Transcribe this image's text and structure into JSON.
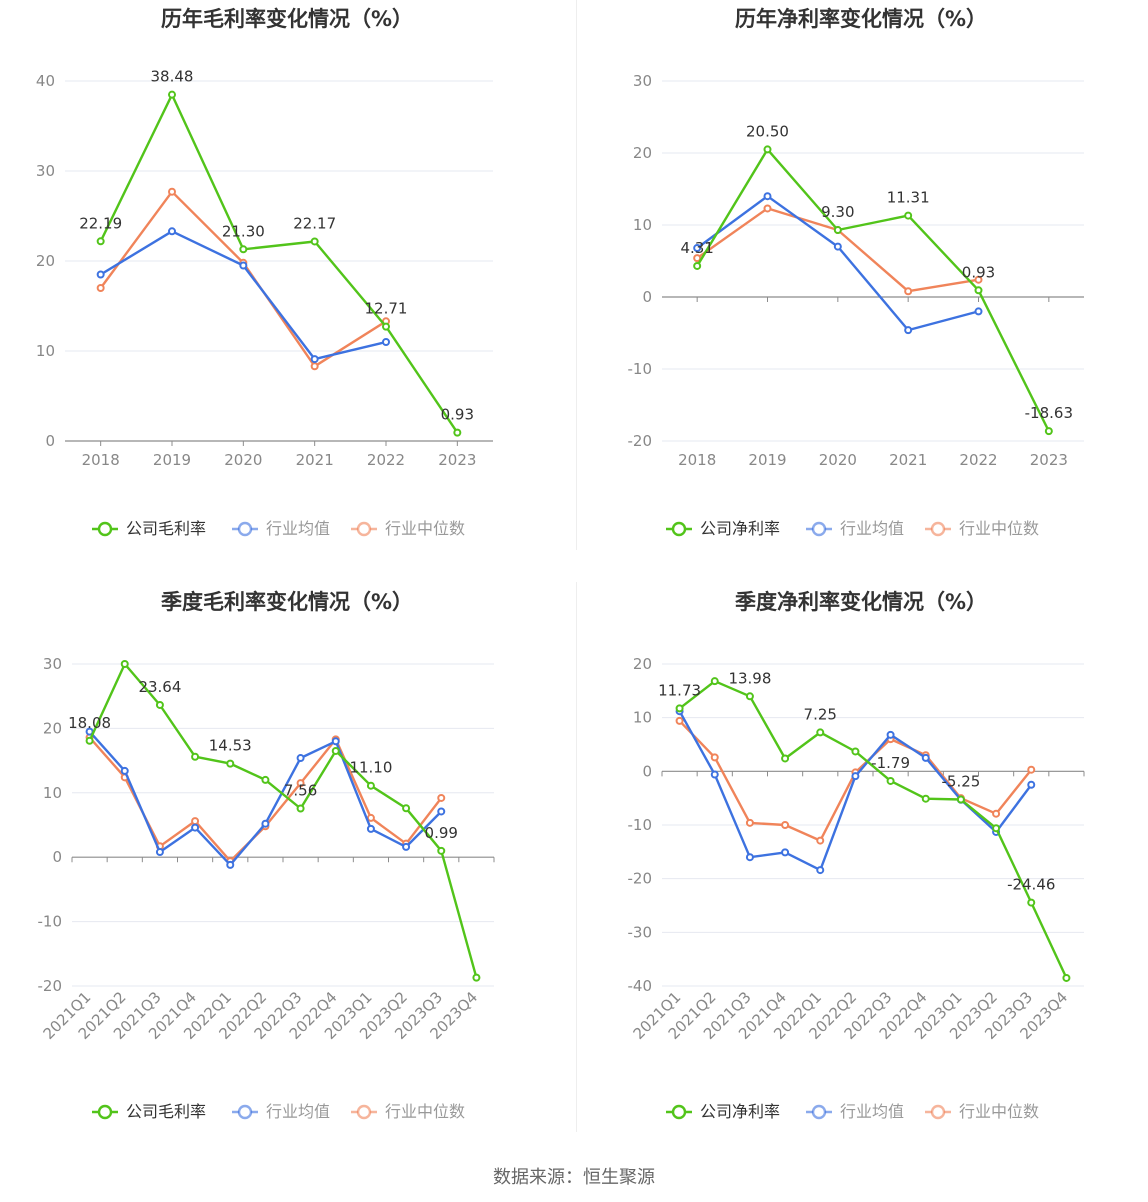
{
  "source": "数据来源：恒生聚源",
  "colors": {
    "company": "#52c41a",
    "avg": "#3d72e0",
    "median": "#f0845a"
  },
  "chart_data": [
    {
      "type": "line",
      "title": "历年毛利率变化情况（%）",
      "categories": [
        "2018",
        "2019",
        "2020",
        "2021",
        "2022",
        "2023"
      ],
      "ylim": [
        0,
        40
      ],
      "yticks": [
        0,
        10,
        20,
        30,
        40
      ],
      "grid": true,
      "legend": "bottom",
      "series": [
        {
          "name": "公司毛利率",
          "values": [
            22.19,
            38.48,
            21.3,
            22.17,
            12.71,
            0.93
          ],
          "labels": [
            "22.19",
            "38.48",
            "21.30",
            "22.17",
            "12.71",
            "0.93"
          ]
        },
        {
          "name": "行业均值",
          "values": [
            18.5,
            23.3,
            19.5,
            9.1,
            11.0,
            null
          ]
        },
        {
          "name": "行业中位数",
          "values": [
            17.0,
            27.7,
            19.8,
            8.3,
            13.3,
            null
          ]
        }
      ]
    },
    {
      "type": "line",
      "title": "历年净利率变化情况（%）",
      "categories": [
        "2018",
        "2019",
        "2020",
        "2021",
        "2022",
        "2023"
      ],
      "ylim": [
        -20,
        30
      ],
      "yticks": [
        -20,
        -10,
        0,
        10,
        20,
        30
      ],
      "grid": true,
      "legend": "bottom",
      "series": [
        {
          "name": "公司净利率",
          "values": [
            4.31,
            20.5,
            9.3,
            11.31,
            0.93,
            -18.63
          ],
          "labels": [
            "4.31",
            "20.50",
            "9.30",
            "11.31",
            "0.93",
            "-18.63"
          ]
        },
        {
          "name": "行业均值",
          "values": [
            6.8,
            14.0,
            7.0,
            -4.6,
            -2.0,
            null
          ]
        },
        {
          "name": "行业中位数",
          "values": [
            5.4,
            12.3,
            9.3,
            0.8,
            2.4,
            null
          ]
        }
      ]
    },
    {
      "type": "line",
      "title": "季度毛利率变化情况（%）",
      "categories": [
        "2021Q1",
        "2021Q2",
        "2021Q3",
        "2021Q4",
        "2022Q1",
        "2022Q2",
        "2022Q3",
        "2022Q4",
        "2023Q1",
        "2023Q2",
        "2023Q3",
        "2023Q4"
      ],
      "ylim": [
        -20,
        30
      ],
      "yticks": [
        -20,
        -10,
        0,
        10,
        20,
        30
      ],
      "grid": true,
      "legend": "bottom",
      "series": [
        {
          "name": "公司毛利率",
          "values": [
            18.08,
            30.0,
            23.64,
            15.6,
            14.53,
            12.0,
            7.56,
            16.5,
            11.1,
            7.6,
            0.99,
            -18.7
          ],
          "labels": [
            "18.08",
            "",
            "23.64",
            "",
            "14.53",
            "",
            "7.56",
            "",
            "11.10",
            "",
            "0.99",
            ""
          ]
        },
        {
          "name": "行业均值",
          "values": [
            19.5,
            13.4,
            0.8,
            4.6,
            -1.2,
            5.2,
            15.4,
            18.0,
            4.4,
            1.6,
            7.1,
            null
          ]
        },
        {
          "name": "行业中位数",
          "values": [
            18.6,
            12.4,
            1.7,
            5.6,
            -0.6,
            4.8,
            11.5,
            18.3,
            6.1,
            2.1,
            9.2,
            null
          ]
        }
      ]
    },
    {
      "type": "line",
      "title": "季度净利率变化情况（%）",
      "categories": [
        "2021Q1",
        "2021Q2",
        "2021Q3",
        "2021Q4",
        "2022Q1",
        "2022Q2",
        "2022Q3",
        "2022Q4",
        "2023Q1",
        "2023Q2",
        "2023Q3",
        "2023Q4"
      ],
      "ylim": [
        -40,
        20
      ],
      "yticks": [
        -40,
        -30,
        -20,
        -10,
        0,
        10,
        20
      ],
      "grid": true,
      "legend": "bottom",
      "series": [
        {
          "name": "公司净利率",
          "values": [
            11.73,
            16.8,
            13.98,
            2.4,
            7.25,
            3.7,
            -1.79,
            -5.1,
            -5.25,
            -10.6,
            -24.46,
            -38.5
          ],
          "labels": [
            "11.73",
            "",
            "13.98",
            "",
            "7.25",
            "",
            "-1.79",
            "",
            "-5.25",
            "",
            "-24.46",
            ""
          ]
        },
        {
          "name": "行业均值",
          "values": [
            11.2,
            -0.6,
            -16.0,
            -15.1,
            -18.4,
            -0.9,
            6.8,
            2.5,
            -5.3,
            -11.3,
            -2.5,
            null
          ]
        },
        {
          "name": "行业中位数",
          "values": [
            9.4,
            2.6,
            -9.6,
            -10.0,
            -12.9,
            -0.2,
            6.0,
            3.0,
            -5.0,
            -7.9,
            0.3,
            null
          ]
        }
      ]
    }
  ]
}
